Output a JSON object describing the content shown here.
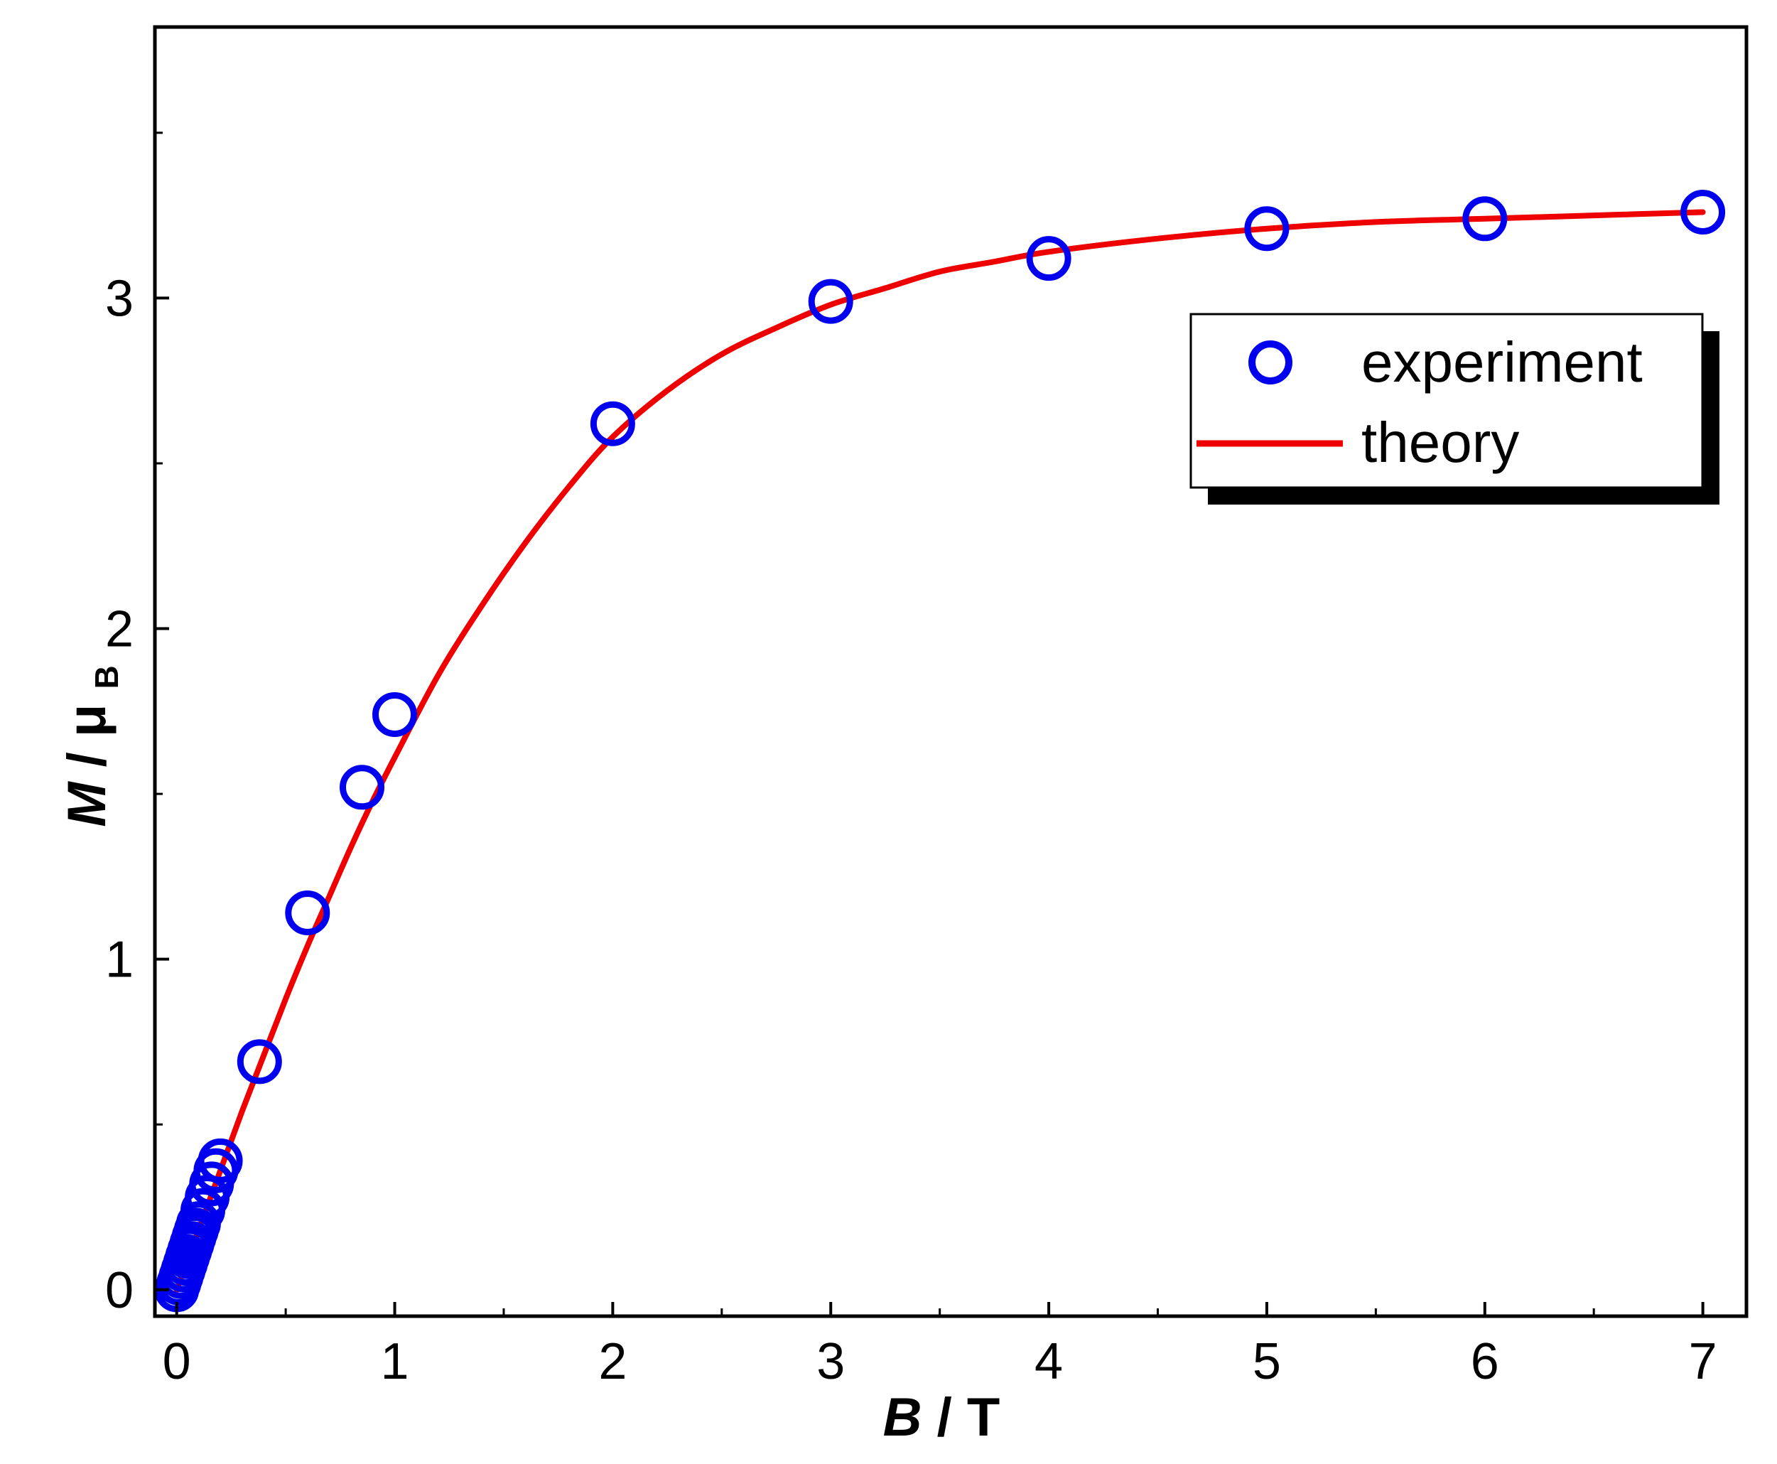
{
  "chart_data": {
    "type": "scatter+line",
    "title": "",
    "xlabel": {
      "var": "B",
      "unit": "T"
    },
    "ylabel": {
      "var": "M",
      "sep": "/",
      "unit_base": "μ",
      "unit_sub": "B"
    },
    "xlim": [
      -0.1,
      7.2
    ],
    "ylim": [
      -0.08,
      3.82
    ],
    "xticks": [
      "0",
      "1",
      "2",
      "3",
      "4",
      "5",
      "6",
      "7"
    ],
    "yticks": [
      "0",
      "1",
      "2",
      "3"
    ],
    "grid": false,
    "legend_position": "top-right",
    "series": [
      {
        "name": "experiment",
        "kind": "markers",
        "color": "#0000EE",
        "points": [
          [
            0.0,
            0.0
          ],
          [
            0.01,
            0.02
          ],
          [
            0.02,
            0.04
          ],
          [
            0.03,
            0.06
          ],
          [
            0.04,
            0.08
          ],
          [
            0.05,
            0.1
          ],
          [
            0.06,
            0.12
          ],
          [
            0.07,
            0.14
          ],
          [
            0.08,
            0.16
          ],
          [
            0.09,
            0.18
          ],
          [
            0.1,
            0.2
          ],
          [
            0.12,
            0.24
          ],
          [
            0.14,
            0.28
          ],
          [
            0.16,
            0.32
          ],
          [
            0.18,
            0.36
          ],
          [
            0.2,
            0.39
          ],
          [
            0.38,
            0.69
          ],
          [
            0.6,
            1.14
          ],
          [
            0.85,
            1.52
          ],
          [
            1.0,
            1.74
          ],
          [
            2.0,
            2.62
          ],
          [
            3.0,
            2.99
          ],
          [
            4.0,
            3.12
          ],
          [
            5.0,
            3.21
          ],
          [
            6.0,
            3.24
          ],
          [
            7.0,
            3.26
          ]
        ]
      },
      {
        "name": "theory",
        "kind": "line",
        "color": "#EE0000",
        "points": [
          [
            0.0,
            0.0
          ],
          [
            0.1,
            0.18
          ],
          [
            0.2,
            0.36
          ],
          [
            0.3,
            0.54
          ],
          [
            0.4,
            0.71
          ],
          [
            0.5,
            0.88
          ],
          [
            0.6,
            1.04
          ],
          [
            0.7,
            1.19
          ],
          [
            0.8,
            1.34
          ],
          [
            0.9,
            1.48
          ],
          [
            1.0,
            1.61
          ],
          [
            1.2,
            1.86
          ],
          [
            1.4,
            2.07
          ],
          [
            1.6,
            2.26
          ],
          [
            1.8,
            2.43
          ],
          [
            2.0,
            2.58
          ],
          [
            2.25,
            2.72
          ],
          [
            2.5,
            2.83
          ],
          [
            2.75,
            2.91
          ],
          [
            3.0,
            2.98
          ],
          [
            3.25,
            3.03
          ],
          [
            3.5,
            3.08
          ],
          [
            3.75,
            3.11
          ],
          [
            4.0,
            3.14
          ],
          [
            4.5,
            3.18
          ],
          [
            5.0,
            3.21
          ],
          [
            5.5,
            3.23
          ],
          [
            6.0,
            3.24
          ],
          [
            6.5,
            3.25
          ],
          [
            7.0,
            3.26
          ]
        ]
      }
    ]
  }
}
